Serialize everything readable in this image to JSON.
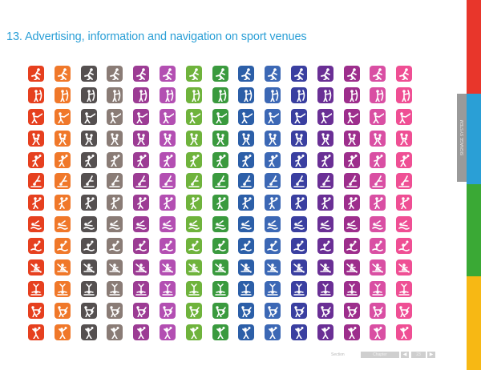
{
  "page": {
    "title": "13. Advertising, information and navigation on sport venues"
  },
  "side_tab": {
    "label": "SIGNAGE SYSTEM"
  },
  "footer": {
    "section_label": "Section",
    "chapter_label": "Chapter",
    "prev_icon": "triangle-left-icon",
    "next_icon": "triangle-right-icon",
    "page_number": "23"
  },
  "side_stripes": [
    {
      "name": "red-stripe",
      "color": "#e8362b"
    },
    {
      "name": "blue-stripe",
      "color": "#2a9fd6"
    },
    {
      "name": "green-stripe",
      "color": "#3aa935"
    },
    {
      "name": "yellow-stripe",
      "color": "#f7b814"
    }
  ],
  "pictogram_grid": {
    "column_colors": [
      "#e6401f",
      "#f0782a",
      "#555050",
      "#8a7c76",
      "#9c3c94",
      "#b34fb2",
      "#6fb33c",
      "#3a9a3e",
      "#2c5fa8",
      "#3c68b5",
      "#3a3fa0",
      "#6a2f95",
      "#9d2e8c",
      "#d94fa3",
      "#ef4f94"
    ],
    "sports": [
      "athletics",
      "archery",
      "fencing",
      "wrestling",
      "handball",
      "diving",
      "basketball",
      "swimming",
      "water-polo",
      "rowing",
      "gymnastics",
      "judo",
      "volleyball",
      "boxing",
      "weightlifting"
    ],
    "icon_color": "#ffffff"
  }
}
